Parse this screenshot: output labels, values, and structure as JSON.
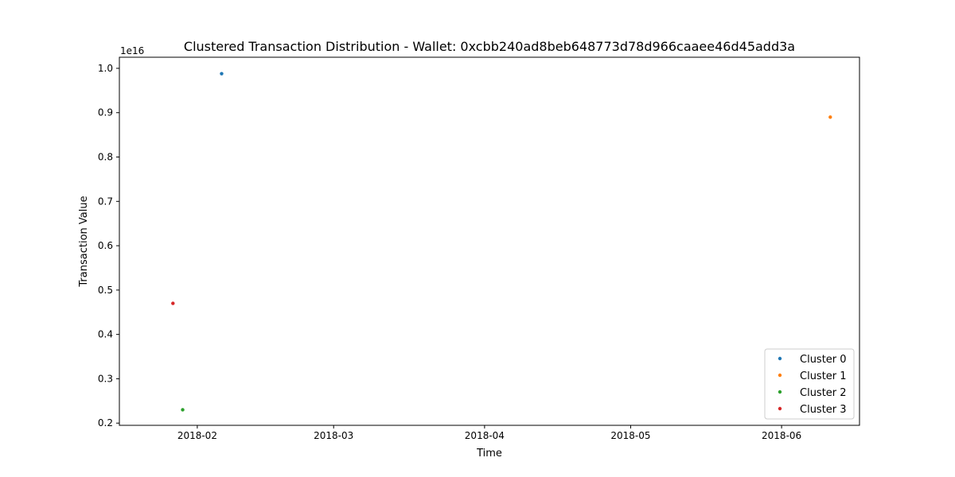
{
  "chart_data": {
    "type": "scatter",
    "title": "Clustered Transaction Distribution - Wallet: 0xcbb240ad8beb648773d78d966caaee46d45add3a",
    "xlabel": "Time",
    "ylabel": "Transaction Value",
    "y_offset_text": "1e16",
    "x_axis_type": "date",
    "xlim": [
      "2018-01-16",
      "2018-06-17"
    ],
    "ylim": [
      1950000000000000.0,
      1.025e+16
    ],
    "x_ticks": [
      "2018-02-01",
      "2018-03-01",
      "2018-04-01",
      "2018-05-01",
      "2018-06-01"
    ],
    "x_tick_labels": [
      "2018-02",
      "2018-03",
      "2018-04",
      "2018-05",
      "2018-06"
    ],
    "y_ticks": [
      2000000000000000.0,
      3000000000000000.0,
      4000000000000000.0,
      5000000000000000.0,
      6000000000000000.0,
      7000000000000000.0,
      8000000000000000.0,
      9000000000000000.0,
      1e+16
    ],
    "y_tick_labels": [
      "0.2",
      "0.3",
      "0.4",
      "0.5",
      "0.6",
      "0.7",
      "0.8",
      "0.9",
      "1.0"
    ],
    "grid": false,
    "legend_position": "bottom-right",
    "series": [
      {
        "name": "Cluster 0",
        "color": "#1f77b4",
        "points": [
          {
            "x": "2018-02-06",
            "y": 9880000000000000.0
          }
        ]
      },
      {
        "name": "Cluster 1",
        "color": "#ff7f0e",
        "points": [
          {
            "x": "2018-06-11",
            "y": 8900000000000000.0
          }
        ]
      },
      {
        "name": "Cluster 2",
        "color": "#2ca02c",
        "points": [
          {
            "x": "2018-01-29",
            "y": 2300000000000000.0
          }
        ]
      },
      {
        "name": "Cluster 3",
        "color": "#d62728",
        "points": [
          {
            "x": "2018-01-27",
            "y": 4700000000000000.0
          }
        ]
      }
    ]
  }
}
